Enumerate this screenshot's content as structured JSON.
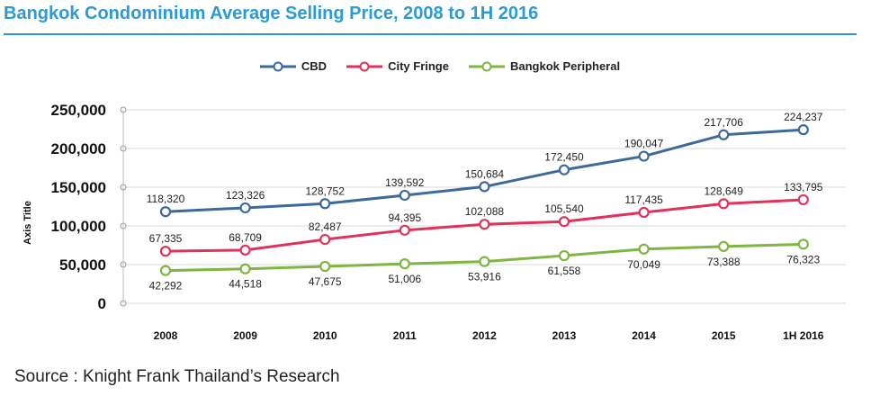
{
  "chart_data": {
    "type": "line",
    "title": "Bangkok Condominium Average Selling Price, 2008 to 1H 2016",
    "ylabel": "Axis Title",
    "xlabel": "",
    "categories": [
      "2008",
      "2009",
      "2010",
      "2011",
      "2012",
      "2013",
      "2014",
      "2015",
      "1H 2016"
    ],
    "ylim": [
      0,
      250000
    ],
    "yticks": [
      0,
      50000,
      100000,
      150000,
      200000,
      250000
    ],
    "ytick_labels": [
      "0",
      "50,000",
      "100,000",
      "150,000",
      "200,000",
      "250,000"
    ],
    "grid": true,
    "legend_position": "top-center",
    "series": [
      {
        "name": "CBD",
        "color": "#3d6a9a",
        "values": [
          118320,
          123326,
          128752,
          139592,
          150684,
          172450,
          190047,
          217706,
          224237
        ],
        "labels": [
          "118,320",
          "123,326",
          "128,752",
          "139,592",
          "150,684",
          "172,450",
          "190,047",
          "217,706",
          "224,237"
        ],
        "label_position": "above"
      },
      {
        "name": "City Fringe",
        "color": "#e0325a",
        "values": [
          67335,
          68709,
          82487,
          94395,
          102088,
          105540,
          117435,
          128649,
          133795
        ],
        "labels": [
          "67,335",
          "68,709",
          "82,487",
          "94,395",
          "102,088",
          "105,540",
          "117,435",
          "128,649",
          "133,795"
        ],
        "label_position": "above"
      },
      {
        "name": "Bangkok Peripheral",
        "color": "#7fb543",
        "values": [
          42292,
          44518,
          47675,
          51006,
          53916,
          61558,
          70049,
          73388,
          76323
        ],
        "labels": [
          "42,292",
          "44,518",
          "47,675",
          "51,006",
          "53,916",
          "61,558",
          "70,049",
          "73,388",
          "76,323"
        ],
        "label_position": "below"
      }
    ]
  },
  "source": "Source : Knight Frank Thailand’s Research"
}
